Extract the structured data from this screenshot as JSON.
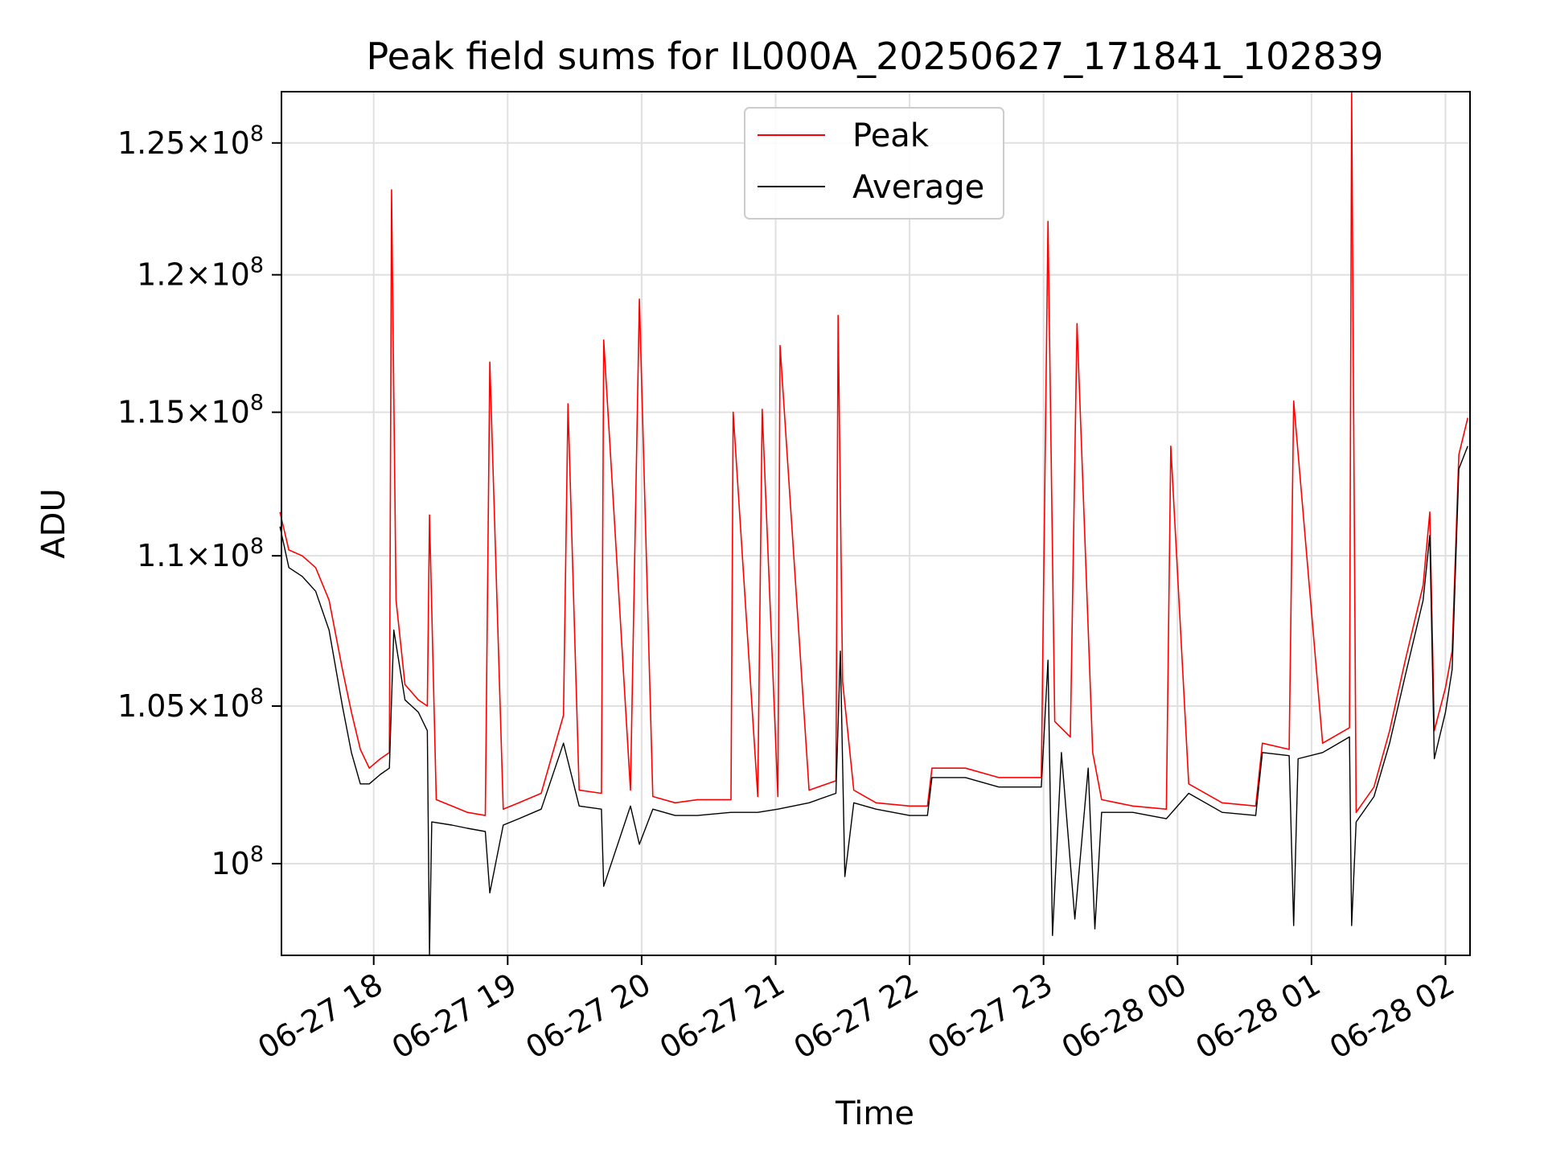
{
  "chart_data": {
    "type": "line",
    "title": "Peak field sums for IL000A_20250627_171841_102839",
    "xlabel": "Time",
    "ylabel": "ADU",
    "x_range": [
      "2025-06-27 17:18:41",
      "2025-06-28 02:11:00"
    ],
    "ylim": [
      97200000,
      127000000
    ],
    "yscale": "log",
    "grid": true,
    "legend_position": "upper center",
    "x_ticks": [
      {
        "label": "06-27 18",
        "t": "2025-06-27 18:00"
      },
      {
        "label": "06-27 19",
        "t": "2025-06-27 19:00"
      },
      {
        "label": "06-27 20",
        "t": "2025-06-27 20:00"
      },
      {
        "label": "06-27 21",
        "t": "2025-06-27 21:00"
      },
      {
        "label": "06-27 22",
        "t": "2025-06-27 22:00"
      },
      {
        "label": "06-27 23",
        "t": "2025-06-27 23:00"
      },
      {
        "label": "06-28 00",
        "t": "2025-06-28 00:00"
      },
      {
        "label": "06-28 01",
        "t": "2025-06-28 01:00"
      },
      {
        "label": "06-28 02",
        "t": "2025-06-28 02:00"
      }
    ],
    "y_ticks": [
      {
        "value": 100000000,
        "mantissa": "",
        "exp": "8"
      },
      {
        "value": 105000000,
        "mantissa": "1.05",
        "exp": "8"
      },
      {
        "value": 110000000,
        "mantissa": "1.1",
        "exp": "8"
      },
      {
        "value": 115000000,
        "mantissa": "1.15",
        "exp": "8"
      },
      {
        "value": 120000000,
        "mantissa": "1.2",
        "exp": "8"
      },
      {
        "value": 125000000,
        "mantissa": "1.25",
        "exp": "8"
      }
    ],
    "series": [
      {
        "name": "Peak",
        "color": "#ff0000",
        "points": [
          [
            "2025-06-27 17:18",
            111500000
          ],
          [
            "2025-06-27 17:22",
            110200000
          ],
          [
            "2025-06-27 17:28",
            110000000
          ],
          [
            "2025-06-27 17:34",
            109600000
          ],
          [
            "2025-06-27 17:40",
            108500000
          ],
          [
            "2025-06-27 17:46",
            106200000
          ],
          [
            "2025-06-27 17:50",
            104800000
          ],
          [
            "2025-06-27 17:54",
            103600000
          ],
          [
            "2025-06-27 17:58",
            103000000
          ],
          [
            "2025-06-27 18:03",
            103300000
          ],
          [
            "2025-06-27 18:07",
            103500000
          ],
          [
            "2025-06-27 18:08",
            123200000
          ],
          [
            "2025-06-27 18:10",
            108500000
          ],
          [
            "2025-06-27 18:14",
            105700000
          ],
          [
            "2025-06-27 18:20",
            105200000
          ],
          [
            "2025-06-27 18:24",
            105000000
          ],
          [
            "2025-06-27 18:25",
            111400000
          ],
          [
            "2025-06-27 18:28",
            102000000
          ],
          [
            "2025-06-27 18:35",
            101800000
          ],
          [
            "2025-06-27 18:42",
            101600000
          ],
          [
            "2025-06-27 18:50",
            101500000
          ],
          [
            "2025-06-27 18:52",
            116800000
          ],
          [
            "2025-06-27 18:58",
            101700000
          ],
          [
            "2025-06-27 19:05",
            101900000
          ],
          [
            "2025-06-27 19:15",
            102200000
          ],
          [
            "2025-06-27 19:25",
            104700000
          ],
          [
            "2025-06-27 19:27",
            115300000
          ],
          [
            "2025-06-27 19:32",
            102300000
          ],
          [
            "2025-06-27 19:42",
            102200000
          ],
          [
            "2025-06-27 19:43",
            117600000
          ],
          [
            "2025-06-27 19:55",
            102300000
          ],
          [
            "2025-06-27 19:59",
            119100000
          ],
          [
            "2025-06-27 20:05",
            102100000
          ],
          [
            "2025-06-27 20:15",
            101900000
          ],
          [
            "2025-06-27 20:25",
            102000000
          ],
          [
            "2025-06-27 20:40",
            102000000
          ],
          [
            "2025-06-27 20:41",
            115000000
          ],
          [
            "2025-06-27 20:52",
            102100000
          ],
          [
            "2025-06-27 20:54",
            115100000
          ],
          [
            "2025-06-27 21:01",
            102100000
          ],
          [
            "2025-06-27 21:02",
            117400000
          ],
          [
            "2025-06-27 21:15",
            102300000
          ],
          [
            "2025-06-27 21:27",
            102600000
          ],
          [
            "2025-06-27 21:28",
            118500000
          ],
          [
            "2025-06-27 21:30",
            105800000
          ],
          [
            "2025-06-27 21:35",
            102300000
          ],
          [
            "2025-06-27 21:45",
            101900000
          ],
          [
            "2025-06-27 22:00",
            101800000
          ],
          [
            "2025-06-27 22:08",
            101800000
          ],
          [
            "2025-06-27 22:10",
            103000000
          ],
          [
            "2025-06-27 22:25",
            103000000
          ],
          [
            "2025-06-27 22:40",
            102700000
          ],
          [
            "2025-06-27 22:59",
            102700000
          ],
          [
            "2025-06-27 23:02",
            122000000
          ],
          [
            "2025-06-27 23:05",
            104500000
          ],
          [
            "2025-06-27 23:12",
            104000000
          ],
          [
            "2025-06-27 23:15",
            118200000
          ],
          [
            "2025-06-27 23:22",
            103500000
          ],
          [
            "2025-06-27 23:26",
            102000000
          ],
          [
            "2025-06-27 23:40",
            101800000
          ],
          [
            "2025-06-27 23:55",
            101700000
          ],
          [
            "2025-06-27 23:57",
            113800000
          ],
          [
            "2025-06-28 00:05",
            102500000
          ],
          [
            "2025-06-28 00:20",
            101900000
          ],
          [
            "2025-06-28 00:35",
            101800000
          ],
          [
            "2025-06-28 00:38",
            103800000
          ],
          [
            "2025-06-28 00:50",
            103600000
          ],
          [
            "2025-06-28 00:52",
            115400000
          ],
          [
            "2025-06-28 01:05",
            103800000
          ],
          [
            "2025-06-28 01:17",
            104300000
          ],
          [
            "2025-06-28 01:18",
            127000000
          ],
          [
            "2025-06-28 01:20",
            101600000
          ],
          [
            "2025-06-28 01:28",
            102400000
          ],
          [
            "2025-06-28 01:35",
            104200000
          ],
          [
            "2025-06-28 01:42",
            106500000
          ],
          [
            "2025-06-28 01:50",
            109000000
          ],
          [
            "2025-06-28 01:53",
            111500000
          ],
          [
            "2025-06-28 01:55",
            104200000
          ],
          [
            "2025-06-28 02:00",
            105600000
          ],
          [
            "2025-06-28 02:03",
            106800000
          ],
          [
            "2025-06-28 02:06",
            113500000
          ],
          [
            "2025-06-28 02:10",
            114800000
          ]
        ]
      },
      {
        "name": "Average",
        "color": "#000000",
        "points": [
          [
            "2025-06-27 17:18",
            111000000
          ],
          [
            "2025-06-27 17:22",
            109600000
          ],
          [
            "2025-06-27 17:28",
            109300000
          ],
          [
            "2025-06-27 17:34",
            108800000
          ],
          [
            "2025-06-27 17:40",
            107500000
          ],
          [
            "2025-06-27 17:46",
            105000000
          ],
          [
            "2025-06-27 17:50",
            103500000
          ],
          [
            "2025-06-27 17:54",
            102500000
          ],
          [
            "2025-06-27 17:58",
            102500000
          ],
          [
            "2025-06-27 18:03",
            102800000
          ],
          [
            "2025-06-27 18:07",
            103000000
          ],
          [
            "2025-06-27 18:09",
            107500000
          ],
          [
            "2025-06-27 18:14",
            105200000
          ],
          [
            "2025-06-27 18:20",
            104800000
          ],
          [
            "2025-06-27 18:24",
            104200000
          ],
          [
            "2025-06-27 18:25",
            97200000
          ],
          [
            "2025-06-27 18:26",
            101300000
          ],
          [
            "2025-06-27 18:35",
            101200000
          ],
          [
            "2025-06-27 18:42",
            101100000
          ],
          [
            "2025-06-27 18:50",
            101000000
          ],
          [
            "2025-06-27 18:52",
            99100000
          ],
          [
            "2025-06-27 18:58",
            101200000
          ],
          [
            "2025-06-27 19:05",
            101400000
          ],
          [
            "2025-06-27 19:15",
            101700000
          ],
          [
            "2025-06-27 19:25",
            103800000
          ],
          [
            "2025-06-27 19:32",
            101800000
          ],
          [
            "2025-06-27 19:42",
            101700000
          ],
          [
            "2025-06-27 19:43",
            99300000
          ],
          [
            "2025-06-27 19:55",
            101800000
          ],
          [
            "2025-06-27 19:59",
            100600000
          ],
          [
            "2025-06-27 20:05",
            101700000
          ],
          [
            "2025-06-27 20:15",
            101500000
          ],
          [
            "2025-06-27 20:25",
            101500000
          ],
          [
            "2025-06-27 20:40",
            101600000
          ],
          [
            "2025-06-27 20:52",
            101600000
          ],
          [
            "2025-06-27 21:01",
            101700000
          ],
          [
            "2025-06-27 21:15",
            101900000
          ],
          [
            "2025-06-27 21:27",
            102200000
          ],
          [
            "2025-06-27 21:29",
            106800000
          ],
          [
            "2025-06-27 21:31",
            99600000
          ],
          [
            "2025-06-27 21:35",
            101900000
          ],
          [
            "2025-06-27 21:45",
            101700000
          ],
          [
            "2025-06-27 22:00",
            101500000
          ],
          [
            "2025-06-27 22:08",
            101500000
          ],
          [
            "2025-06-27 22:10",
            102700000
          ],
          [
            "2025-06-27 22:25",
            102700000
          ],
          [
            "2025-06-27 22:40",
            102400000
          ],
          [
            "2025-06-27 22:59",
            102400000
          ],
          [
            "2025-06-27 23:02",
            106500000
          ],
          [
            "2025-06-27 23:04",
            97800000
          ],
          [
            "2025-06-27 23:08",
            103500000
          ],
          [
            "2025-06-27 23:14",
            98300000
          ],
          [
            "2025-06-27 23:20",
            103000000
          ],
          [
            "2025-06-27 23:23",
            98000000
          ],
          [
            "2025-06-27 23:26",
            101600000
          ],
          [
            "2025-06-27 23:40",
            101600000
          ],
          [
            "2025-06-27 23:55",
            101400000
          ],
          [
            "2025-06-28 00:05",
            102200000
          ],
          [
            "2025-06-28 00:20",
            101600000
          ],
          [
            "2025-06-28 00:35",
            101500000
          ],
          [
            "2025-06-28 00:38",
            103500000
          ],
          [
            "2025-06-28 00:50",
            103400000
          ],
          [
            "2025-06-28 00:52",
            98100000
          ],
          [
            "2025-06-28 00:54",
            103300000
          ],
          [
            "2025-06-28 01:05",
            103500000
          ],
          [
            "2025-06-28 01:17",
            104000000
          ],
          [
            "2025-06-28 01:18",
            98100000
          ],
          [
            "2025-06-28 01:20",
            101300000
          ],
          [
            "2025-06-28 01:28",
            102100000
          ],
          [
            "2025-06-28 01:35",
            103800000
          ],
          [
            "2025-06-28 01:42",
            106000000
          ],
          [
            "2025-06-28 01:50",
            108500000
          ],
          [
            "2025-06-28 01:53",
            110700000
          ],
          [
            "2025-06-28 01:55",
            103300000
          ],
          [
            "2025-06-28 02:00",
            104800000
          ],
          [
            "2025-06-28 02:03",
            106200000
          ],
          [
            "2025-06-28 02:06",
            113000000
          ],
          [
            "2025-06-28 02:10",
            113800000
          ]
        ]
      }
    ]
  }
}
